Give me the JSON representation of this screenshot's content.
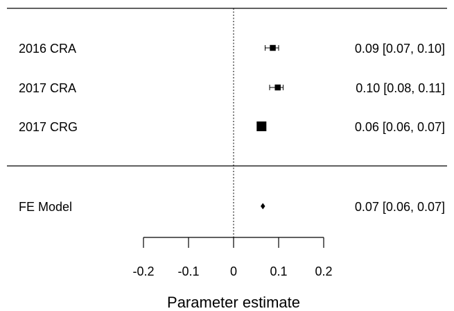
{
  "chart_data": {
    "type": "forest",
    "xlabel": "Parameter estimate",
    "xlim": [
      -0.2,
      0.2
    ],
    "xticks": [
      -0.2,
      -0.1,
      0,
      0.1,
      0.2
    ],
    "xtick_labels": [
      "-0.2",
      "-0.1",
      "0",
      "0.1",
      "0.2"
    ],
    "reference_line": 0,
    "studies": [
      {
        "label": "2016 CRA",
        "estimate": 0.087,
        "ci_low": 0.07,
        "ci_high": 0.1,
        "ci_text": "0.09 [0.07, 0.10]",
        "weight": 0.2
      },
      {
        "label": "2017 CRA",
        "estimate": 0.098,
        "ci_low": 0.08,
        "ci_high": 0.11,
        "ci_text": "0.10 [0.08, 0.11]",
        "weight": 0.2
      },
      {
        "label": "2017 CRG",
        "estimate": 0.062,
        "ci_low": 0.06,
        "ci_high": 0.07,
        "ci_text": "0.06 [0.06, 0.07]",
        "weight": 1.0
      }
    ],
    "summary": {
      "label": "FE Model",
      "estimate": 0.065,
      "ci_low": 0.06,
      "ci_high": 0.07,
      "ci_text": "0.07 [0.06, 0.07]"
    }
  }
}
